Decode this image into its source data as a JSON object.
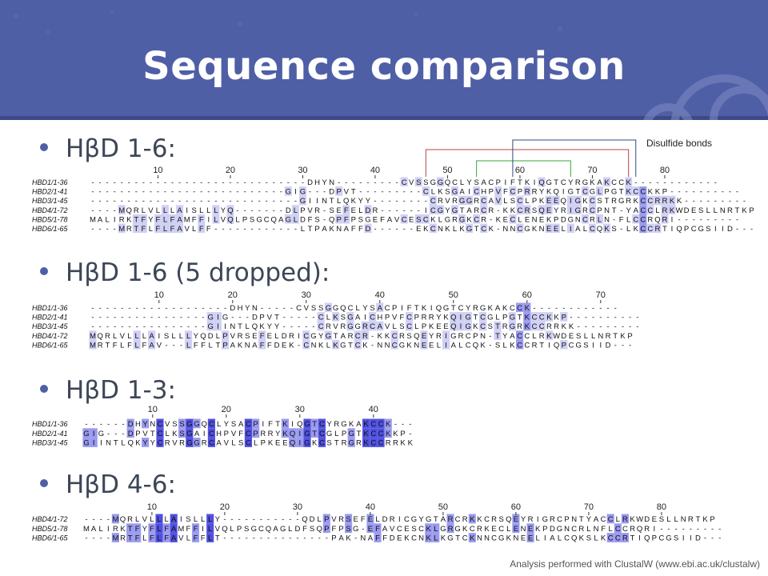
{
  "title": "Sequence comparison",
  "bullets": [
    "HβD 1-6:",
    "HβD 1-6 (5 dropped):",
    "HβD 1-3:",
    "HβD 4-6:"
  ],
  "disulfide_label": "Disulfide bonds",
  "footer_note": "Analysis performed with ClustalW (www.ebi.ac.uk/clustalw)",
  "colors": {
    "banner": "#4f5fa6",
    "bullet": "#4f5fa6",
    "strong": "#5050e0",
    "medium": "#9a9af0",
    "light": "#d0d0f5"
  },
  "alignments": [
    {
      "id": "hbd1-6",
      "ruler": [
        10,
        20,
        30,
        40,
        50,
        60,
        70,
        80
      ],
      "rows": [
        {
          "name": "HBD1/1-36",
          "seq": "------------------------------DHYN---------CVSSGGQCLYSACPIFTKIQGTCYRGKAKCCK------------"
        },
        {
          "name": "HBD2/1-41",
          "seq": "---------------------------GIG---DPVT---------CLKSGAICHPVFCPRRYKQIGTCGLPGTKCCKKP----------"
        },
        {
          "name": "HBD3/1-45",
          "seq": "-----------------------------GIINTLQKYY--------CRVRGGRCAVLSCLPKEEQIGKCSTRGRKCCRRKK---------"
        },
        {
          "name": "HBD4/1-72",
          "seq": "----MQRLVLLLAISLLLYQ-------DLPVR-SEFELDR------ICGYGTARCR-KKCRSQEYRIGRCPNT-YACCLRKWDESLLNRTKP"
        },
        {
          "name": "HBD5/1-78",
          "seq": "MALIRKTFYFLFAMFFILVQLPSGCQAGLDFS-QPFPSGEFAVCESCKLGRGKCR-KECLENEKPDGNCRLN-FLCCRQRI---------"
        },
        {
          "name": "HBD6/1-65",
          "seq": "----MRTFLFLFAVLFF------------LTPAKNAFFD------EKCNKLKGTCK-NNCGKNEELIALCQKS-LKCCRTIQPCGSIID---"
        }
      ]
    },
    {
      "id": "hbd1-6-5-dropped",
      "ruler": [
        10,
        20,
        30,
        40,
        50,
        60,
        70
      ],
      "rows": [
        {
          "name": "HBD1/1-36",
          "seq": "-------------------DHYN-----CVSSGGQCLYSACPIFTKIQGTCYRGKAKCCK------------"
        },
        {
          "name": "HBD2/1-41",
          "seq": "----------------GIG---DPVT-----CLKSGAICHPVFCPRRYKQIGTCGLPGTKCCKKP----------"
        },
        {
          "name": "HBD3/1-45",
          "seq": "----------------GIINTLQKYY-----CRVRGGRCAVLSCLPKEEQIGKCSTRGRKCCRRKK---------"
        },
        {
          "name": "HBD4/1-72",
          "seq": "MQRLVLLLAISLLLYQDLPVRSEFELDRICGYGTARCR-KKCRSQEYRIGRCPN-TYACCLRKWDESLLNRTKP"
        },
        {
          "name": "HBD6/1-65",
          "seq": "MRTFLFLFAV---LFFLTPAKNAFFDEK-CNKLKGTCK-NNCGKNEELIALCQK-SLKCCRTIQPCGSIID---"
        }
      ]
    },
    {
      "id": "hbd1-3",
      "ruler": [
        10,
        20,
        30,
        40
      ],
      "rows": [
        {
          "name": "HBD1/1-36",
          "seq": "------DHYNCVSSGGQCLYSACPIFTKIQGTCYRGKAKCCK---"
        },
        {
          "name": "HBD2/1-41",
          "seq": "GIG---DPVTCLKSGAICHPVFCPRRYKQIGTCGLPGTKCCKKP-"
        },
        {
          "name": "HBD3/1-45",
          "seq": "GIINTLQKYYCRVRGGRCAVLSCLPKEEQIGKCSTRGRKCCRRKK"
        }
      ]
    },
    {
      "id": "hbd4-6",
      "ruler": [
        10,
        20,
        30,
        40,
        50,
        60,
        70,
        80
      ],
      "rows": [
        {
          "name": "HBD4/1-72",
          "seq": "----MQRLVLLLAISLLLY-----------QDLPVRSEFELDRICGYGTARCRKKCRSQEYRIGRCPNTYACCLRKWDESLLNRTKP"
        },
        {
          "name": "HBD5/1-78",
          "seq": "MALIRKTFYFLFAMFFILVQLPSGCQAGLDFSQPFPSG-EFAVCESCKLGRGKCRKECLENEKPDGNCRLNFLCCRQRI---------"
        },
        {
          "name": "HBD6/1-65",
          "seq": "----MRTFLFLFAVLFFLT---------------PAK-NAFFDEKCNKLKGTCKNNCGKNEELIALCQKSLKCCRTIQPCGSIID---"
        }
      ]
    }
  ]
}
